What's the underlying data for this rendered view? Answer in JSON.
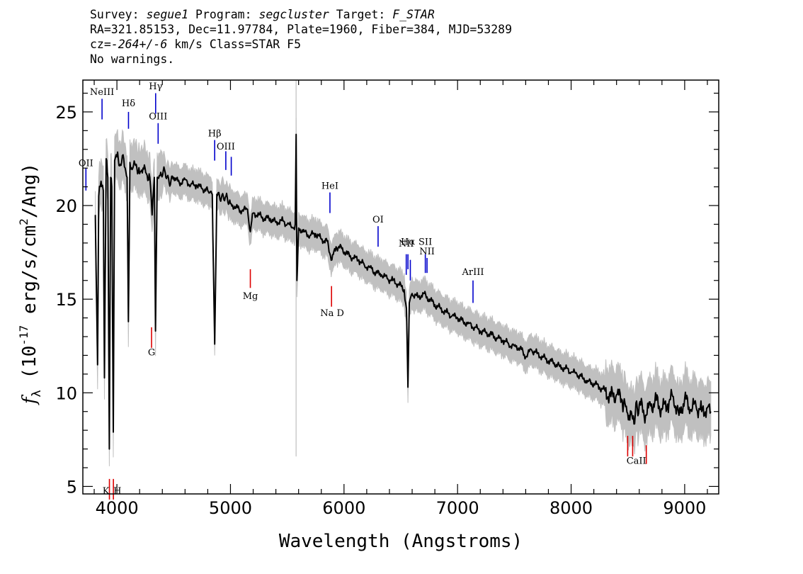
{
  "header": {
    "line1": "Survey: segue1 Program: segcluster Target: F_STAR",
    "line2": "RA=321.85153, Dec=11.97784, Plate=1960, Fiber=384, MJD=53289",
    "line3": "cz=-264+/-6 km/s Class=STAR F5",
    "line4": "No warnings."
  },
  "chart_data": {
    "type": "line",
    "xlabel": "Wavelength (Angstroms)",
    "ylabel": "f_λ (10^-17 erg/s/cm^2/Ang)",
    "xlim": [
      3700,
      9300
    ],
    "ylim": [
      4.6,
      26.7
    ],
    "x_ticks": [
      4000,
      5000,
      6000,
      7000,
      8000,
      9000
    ],
    "y_ticks": [
      5,
      10,
      15,
      20,
      25
    ],
    "grid": false,
    "colors": {
      "spectrum": "#000000",
      "error_band": "#c0c0c0",
      "emission_marker": "#0000cc",
      "absorption_marker": "#dd0000"
    },
    "series": [
      {
        "points": [
          [
            3810,
            19.5
          ],
          [
            3830,
            11.5
          ],
          [
            3840,
            20.5
          ],
          [
            3860,
            21.3
          ],
          [
            3880,
            20.8
          ],
          [
            3890,
            10.8
          ],
          [
            3905,
            22.5
          ],
          [
            3920,
            21.5
          ],
          [
            3933,
            7.0
          ],
          [
            3945,
            21.5
          ],
          [
            3955,
            21.0
          ],
          [
            3968,
            7.9
          ],
          [
            3980,
            22.4
          ],
          [
            4000,
            22.6
          ],
          [
            4030,
            22.2
          ],
          [
            4060,
            22.5
          ],
          [
            4090,
            21.5
          ],
          [
            4101,
            13.8
          ],
          [
            4115,
            22.3
          ],
          [
            4140,
            22.0
          ],
          [
            4170,
            22.2
          ],
          [
            4200,
            21.7
          ],
          [
            4230,
            22.0
          ],
          [
            4260,
            21.7
          ],
          [
            4290,
            21.5
          ],
          [
            4310,
            19.5
          ],
          [
            4330,
            21.5
          ],
          [
            4340,
            13.3
          ],
          [
            4355,
            21.5
          ],
          [
            4380,
            21.6
          ],
          [
            4420,
            21.9
          ],
          [
            4460,
            21.2
          ],
          [
            4500,
            21.5
          ],
          [
            4550,
            21.2
          ],
          [
            4600,
            21.4
          ],
          [
            4650,
            21.1
          ],
          [
            4700,
            21.1
          ],
          [
            4750,
            20.9
          ],
          [
            4800,
            20.8
          ],
          [
            4840,
            20.6
          ],
          [
            4861,
            12.6
          ],
          [
            4880,
            20.6
          ],
          [
            4920,
            20.4
          ],
          [
            4960,
            20.5
          ],
          [
            5000,
            20.1
          ],
          [
            5050,
            19.9
          ],
          [
            5100,
            19.7
          ],
          [
            5150,
            19.8
          ],
          [
            5175,
            18.6
          ],
          [
            5200,
            19.6
          ],
          [
            5250,
            19.5
          ],
          [
            5300,
            19.3
          ],
          [
            5350,
            19.3
          ],
          [
            5400,
            19.1
          ],
          [
            5450,
            19.2
          ],
          [
            5500,
            19.0
          ],
          [
            5550,
            18.8
          ],
          [
            5570,
            19.0
          ],
          [
            5578,
            23.8
          ],
          [
            5585,
            16.0
          ],
          [
            5600,
            18.8
          ],
          [
            5650,
            18.6
          ],
          [
            5700,
            18.4
          ],
          [
            5750,
            18.5
          ],
          [
            5800,
            18.2
          ],
          [
            5850,
            18.1
          ],
          [
            5893,
            17.1
          ],
          [
            5930,
            17.8
          ],
          [
            5980,
            17.7
          ],
          [
            6030,
            17.4
          ],
          [
            6080,
            17.2
          ],
          [
            6130,
            17.1
          ],
          [
            6180,
            16.8
          ],
          [
            6230,
            16.7
          ],
          [
            6280,
            16.4
          ],
          [
            6330,
            16.3
          ],
          [
            6380,
            16.1
          ],
          [
            6430,
            16.0
          ],
          [
            6480,
            15.8
          ],
          [
            6530,
            15.5
          ],
          [
            6550,
            14.5
          ],
          [
            6563,
            10.3
          ],
          [
            6575,
            14.8
          ],
          [
            6600,
            15.3
          ],
          [
            6650,
            15.1
          ],
          [
            6700,
            15.3
          ],
          [
            6750,
            15.0
          ],
          [
            6800,
            14.7
          ],
          [
            6850,
            14.5
          ],
          [
            6900,
            14.3
          ],
          [
            6950,
            14.1
          ],
          [
            7000,
            14.0
          ],
          [
            7050,
            13.8
          ],
          [
            7100,
            13.7
          ],
          [
            7150,
            13.5
          ],
          [
            7200,
            13.3
          ],
          [
            7250,
            13.2
          ],
          [
            7300,
            13.1
          ],
          [
            7350,
            12.9
          ],
          [
            7400,
            12.8
          ],
          [
            7450,
            12.6
          ],
          [
            7500,
            12.5
          ],
          [
            7550,
            12.4
          ],
          [
            7600,
            11.9
          ],
          [
            7650,
            12.3
          ],
          [
            7700,
            12.1
          ],
          [
            7750,
            11.9
          ],
          [
            7800,
            11.7
          ],
          [
            7850,
            11.6
          ],
          [
            7900,
            11.4
          ],
          [
            7950,
            11.3
          ],
          [
            8000,
            11.1
          ],
          [
            8050,
            11.0
          ],
          [
            8100,
            10.8
          ],
          [
            8150,
            10.6
          ],
          [
            8200,
            10.5
          ],
          [
            8250,
            10.3
          ],
          [
            8300,
            10.1
          ],
          [
            8350,
            9.8
          ],
          [
            8400,
            9.9
          ],
          [
            8450,
            9.6
          ],
          [
            8498,
            8.9
          ],
          [
            8542,
            8.6
          ],
          [
            8600,
            9.4
          ],
          [
            8662,
            8.8
          ],
          [
            8700,
            9.3
          ],
          [
            8750,
            9.6
          ],
          [
            8800,
            9.1
          ],
          [
            8850,
            9.4
          ],
          [
            8900,
            9.8
          ],
          [
            8950,
            8.8
          ],
          [
            9000,
            9.7
          ],
          [
            9050,
            9.1
          ],
          [
            9100,
            9.3
          ],
          [
            9150,
            9.0
          ],
          [
            9200,
            9.2
          ],
          [
            9230,
            9.0
          ]
        ]
      }
    ],
    "sky_line_x": 5578,
    "emission_lines": [
      {
        "label": "OII",
        "x": 3727,
        "y_top": 22.0,
        "y_bottom": 20.8,
        "label_y": 22.1
      },
      {
        "label": "NeIII",
        "x": 3869,
        "y_top": 25.7,
        "y_bottom": 24.6,
        "label_y": 25.9
      },
      {
        "label": "Hδ",
        "x": 4102,
        "y_top": 25.0,
        "y_bottom": 24.1,
        "label_y": 25.3
      },
      {
        "label": "Hγ",
        "x": 4341,
        "y_top": 26.0,
        "y_bottom": 24.9,
        "label_y": 26.2
      },
      {
        "label": "OIII",
        "x": 4363,
        "y_top": 24.4,
        "y_bottom": 23.3,
        "label_y": 24.6
      },
      {
        "label": "Hβ",
        "x": 4861,
        "y_top": 23.5,
        "y_bottom": 22.4,
        "label_y": 23.7
      },
      {
        "label": "OIII",
        "x": 4959,
        "y_top": 22.9,
        "y_bottom": 21.9,
        "label_y": 23.0
      },
      {
        "label": "",
        "x": 5007,
        "y_top": 22.6,
        "y_bottom": 21.6,
        "label_y": 0
      },
      {
        "label": "HeI",
        "x": 5876,
        "y_top": 20.7,
        "y_bottom": 19.6,
        "label_y": 20.9
      },
      {
        "label": "OI",
        "x": 6300,
        "y_top": 18.9,
        "y_bottom": 17.8,
        "label_y": 19.1
      },
      {
        "label": "NII",
        "x": 6548,
        "y_top": 17.4,
        "y_bottom": 16.3,
        "label_y": 17.8
      },
      {
        "label": "Hα",
        "x": 6563,
        "y_top": 17.4,
        "y_bottom": 16.6,
        "label_y": 17.9
      },
      {
        "label": "",
        "x": 6584,
        "y_top": 17.1,
        "y_bottom": 16.0,
        "label_y": 0
      },
      {
        "label": "SII",
        "x": 6716,
        "y_top": 17.4,
        "y_bottom": 16.4,
        "label_y": 17.9
      },
      {
        "label": "NII",
        "x": 6731,
        "y_top": 17.2,
        "y_bottom": 16.4,
        "label_y": 17.4
      },
      {
        "label": "ArIII",
        "x": 7136,
        "y_top": 16.0,
        "y_bottom": 14.8,
        "label_y": 16.3
      }
    ],
    "absorption_lines": [
      {
        "label": "K",
        "x": 3934,
        "y_top": 5.4,
        "y_bottom": 4.3,
        "label_y": 4.6,
        "anchor": "end"
      },
      {
        "label": "H",
        "x": 3969,
        "y_top": 5.4,
        "y_bottom": 4.3,
        "label_y": 4.6,
        "anchor": "start"
      },
      {
        "label": "G",
        "x": 4305,
        "y_top": 13.5,
        "y_bottom": 12.4,
        "label_y": 12.0,
        "anchor": "middle"
      },
      {
        "label": "Mg",
        "x": 5175,
        "y_top": 16.6,
        "y_bottom": 15.6,
        "label_y": 15.0,
        "anchor": "middle"
      },
      {
        "label": "",
        "x": 5890,
        "y_top": 15.7,
        "y_bottom": 14.6,
        "label_y": 0,
        "anchor": "middle"
      },
      {
        "label": "Na D",
        "x": 5896,
        "y_top": 0,
        "y_bottom": 0,
        "label_y": 14.1,
        "anchor": "middle"
      },
      {
        "label": "",
        "x": 8498,
        "y_top": 7.7,
        "y_bottom": 6.6,
        "label_y": 0,
        "anchor": "middle"
      },
      {
        "label": "",
        "x": 8542,
        "y_top": 7.7,
        "y_bottom": 6.6,
        "label_y": 0,
        "anchor": "middle"
      },
      {
        "label": "CaII",
        "x": 8662,
        "y_top": 7.2,
        "y_bottom": 6.2,
        "label_y": 6.2,
        "anchor": "end"
      }
    ]
  }
}
